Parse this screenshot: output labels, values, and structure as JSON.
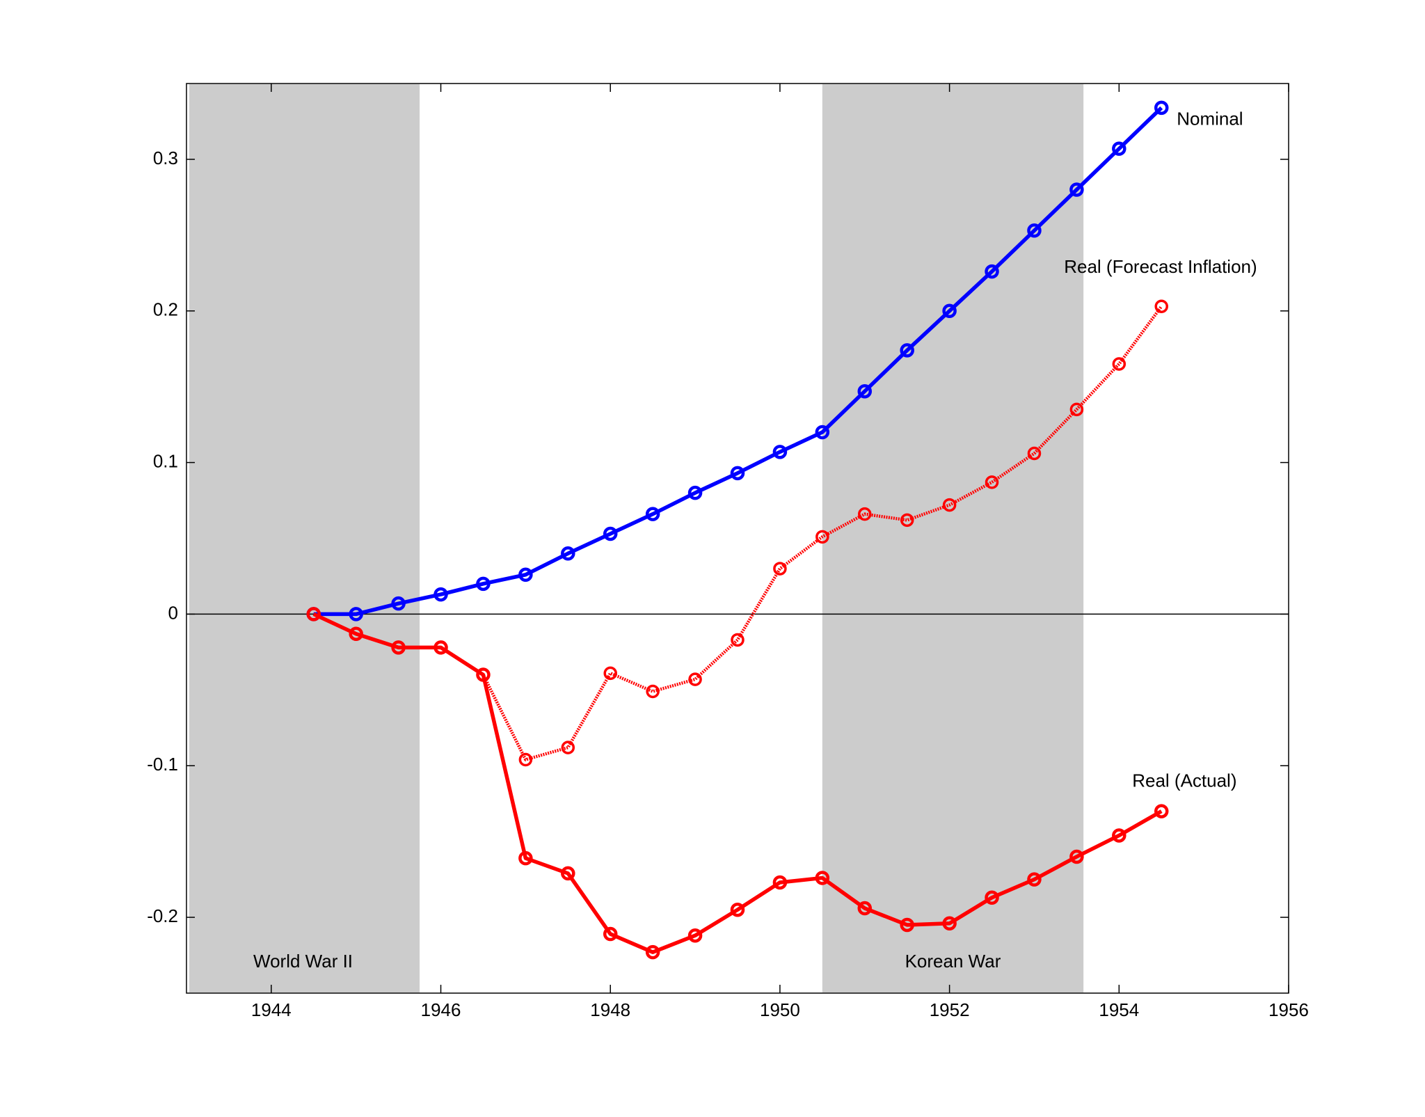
{
  "chart_data": {
    "type": "line",
    "x": [
      1944.5,
      1945,
      1945.5,
      1946,
      1946.5,
      1947,
      1947.5,
      1948,
      1948.5,
      1949,
      1949.5,
      1950,
      1950.5,
      1951,
      1951.5,
      1952,
      1952.5,
      1953,
      1953.5,
      1954,
      1954.5
    ],
    "series": [
      {
        "name": "Nominal",
        "color": "#0000ff",
        "style": "solid",
        "values": [
          0,
          0,
          0.007,
          0.013,
          0.02,
          0.026,
          0.04,
          0.053,
          0.066,
          0.08,
          0.093,
          0.107,
          0.12,
          0.147,
          0.174,
          0.2,
          0.226,
          0.253,
          0.28,
          0.307,
          0.334
        ]
      },
      {
        "name": "Real (Forecast Inflation)",
        "color": "#ff0000",
        "style": "dotted",
        "values": [
          0,
          -0.013,
          -0.022,
          -0.022,
          -0.04,
          -0.096,
          -0.088,
          -0.039,
          -0.051,
          -0.043,
          -0.017,
          0.03,
          0.051,
          0.066,
          0.062,
          0.072,
          0.087,
          0.106,
          0.135,
          0.165,
          0.203
        ]
      },
      {
        "name": "Real (Actual)",
        "color": "#ff0000",
        "style": "solid",
        "values": [
          0,
          -0.013,
          -0.022,
          -0.022,
          -0.04,
          -0.161,
          -0.171,
          -0.211,
          -0.223,
          -0.212,
          -0.195,
          -0.177,
          -0.174,
          -0.194,
          -0.205,
          -0.204,
          -0.187,
          -0.175,
          -0.16,
          -0.146,
          -0.13
        ]
      }
    ],
    "shaded_regions": [
      {
        "label": "World War II",
        "start": 1943,
        "end": 1945.75,
        "color": "#cccccc"
      },
      {
        "label": "Korean War",
        "start": 1950.5,
        "end": 1953.58,
        "color": "#cccccc"
      }
    ],
    "xlim": [
      1943,
      1956
    ],
    "xticks": [
      1944,
      1946,
      1948,
      1950,
      1952,
      1954,
      1956
    ],
    "ylim": [
      -0.25,
      0.35
    ],
    "yticks": [
      -0.2,
      -0.1,
      0,
      0.1,
      0.2,
      0.3
    ],
    "zero_line": true,
    "grid": false
  }
}
